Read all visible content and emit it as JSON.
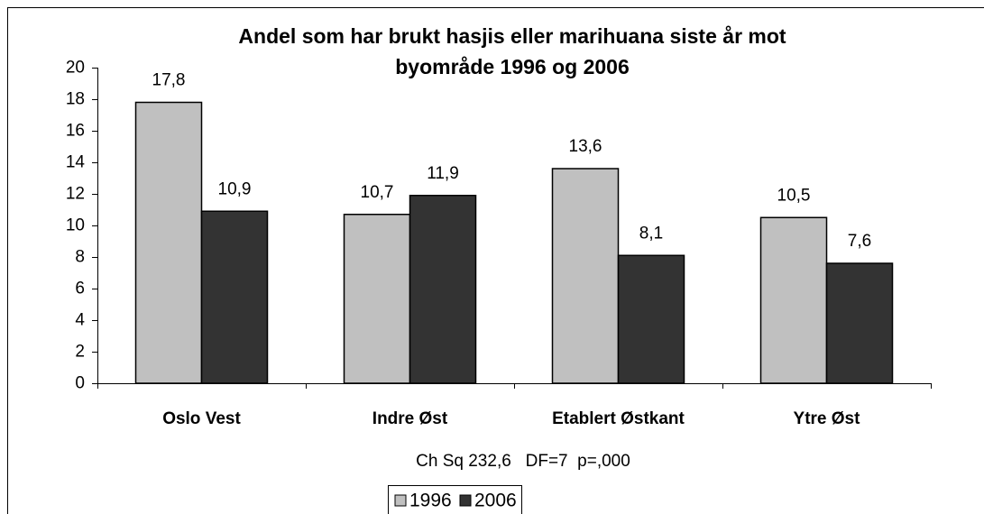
{
  "chart_data": {
    "type": "bar",
    "title": [
      "Andel som har brukt hasjis eller marihuana siste år mot",
      "byområde 1996 og 2006"
    ],
    "categories": [
      "Oslo Vest",
      "Indre Øst",
      "Etablert Østkant",
      "Ytre Øst"
    ],
    "series": [
      {
        "name": "1996",
        "color": "#c0c0c0",
        "values": [
          17.8,
          10.7,
          13.6,
          10.5
        ],
        "value_labels": [
          "17,8",
          "10,7",
          "13,6",
          "10,5"
        ]
      },
      {
        "name": "2006",
        "color": "#333333",
        "values": [
          10.9,
          11.9,
          8.1,
          7.6
        ],
        "value_labels": [
          "10,9",
          "11,9",
          "8,1",
          "7,6"
        ]
      }
    ],
    "annotation": "Ch Sq 232,6   DF=7  p=,000",
    "ylim": [
      0,
      20
    ],
    "yticks": [
      0,
      2,
      4,
      6,
      8,
      10,
      12,
      14,
      16,
      18,
      20
    ],
    "legend": "bottom"
  }
}
